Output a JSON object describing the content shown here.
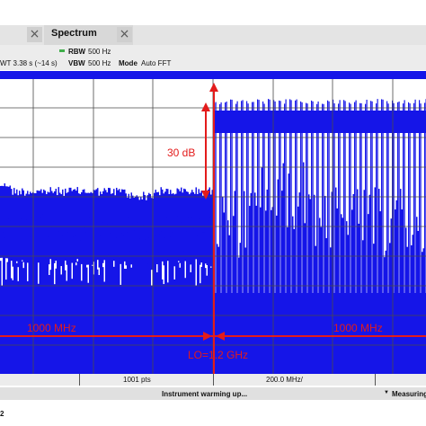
{
  "tabs": [
    {
      "close_icon": "×"
    },
    {
      "label": "Spectrum",
      "close_icon": "×"
    }
  ],
  "params": {
    "swt": "WT  3.38 s (~14 s)",
    "rbw_label": "RBW",
    "rbw_value": "500 Hz",
    "vbw_label": "VBW",
    "vbw_value": "500 Hz",
    "mode_label": "Mode",
    "mode_value": "Auto FFT"
  },
  "annotations": {
    "level_diff": "30 dB",
    "left_span": "1000 MHz",
    "right_span": "1000 MHz",
    "lo": "LO=1.2 GHz"
  },
  "footer": {
    "points": "1001 pts",
    "span_per_div": "200.0 MHz/"
  },
  "status": {
    "message": "Instrument warming up...",
    "measuring": "Measuring"
  },
  "corner_label": "2",
  "colors": {
    "trace": "#1515e8",
    "annotation": "#e31b1b",
    "grid": "#4a4a4a"
  },
  "chart_data": {
    "type": "area",
    "x_divisions": 10,
    "left_region": {
      "approx_top_db_from_ref": -75
    },
    "right_region": {
      "approx_top_db_from_ref": -45
    },
    "level_difference_db": 30
  }
}
